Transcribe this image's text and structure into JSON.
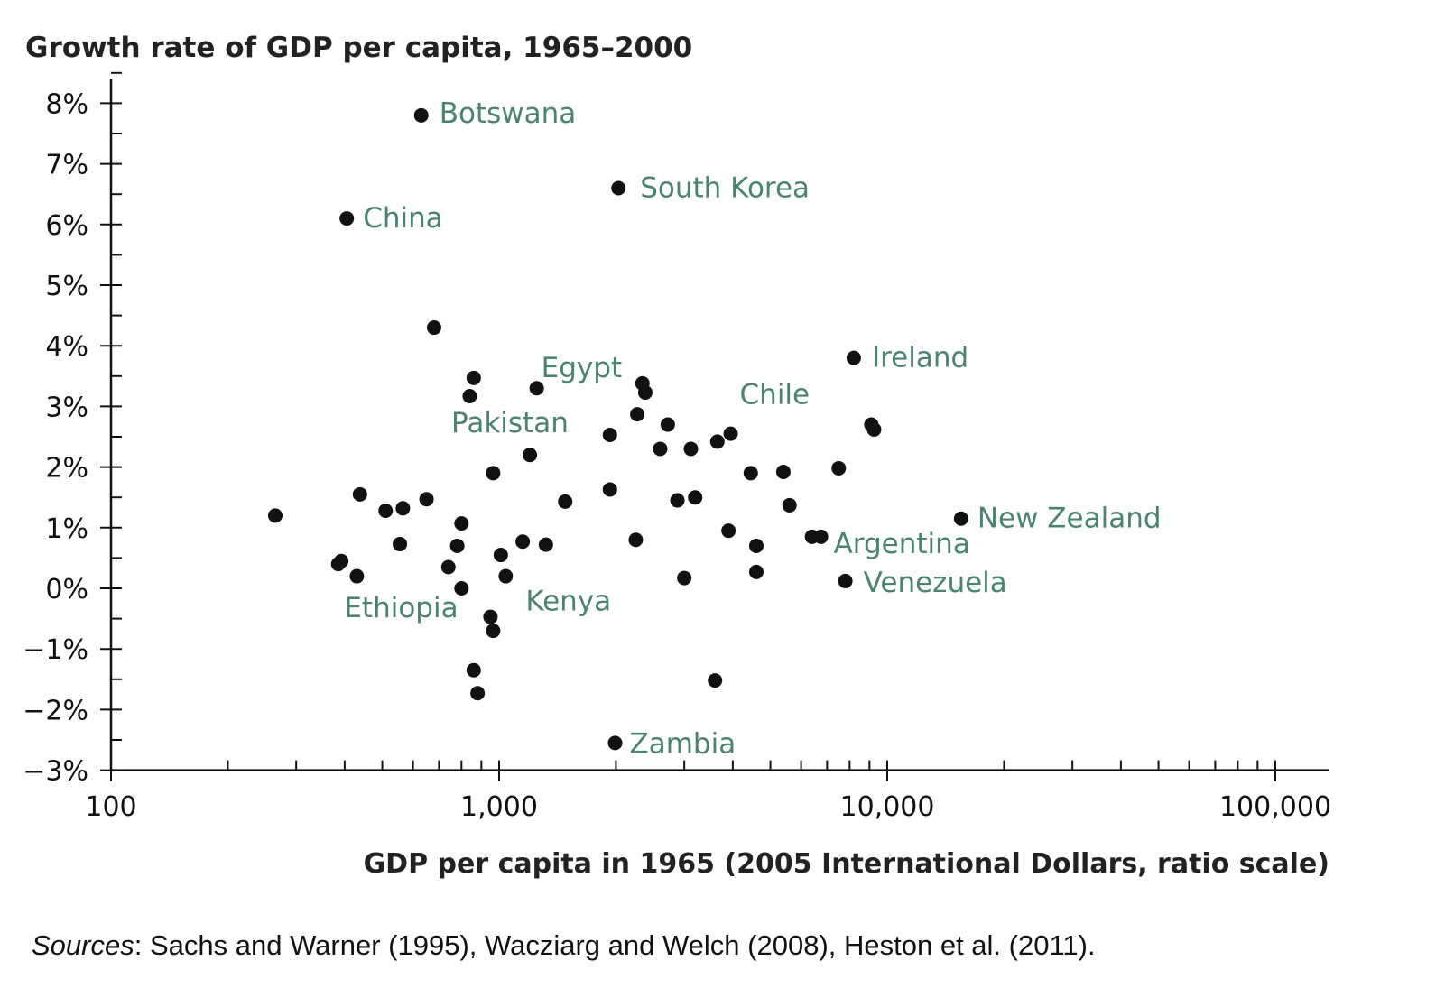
{
  "chart_data": {
    "type": "scatter",
    "title": "Growth rate of GDP per capita, 1965–2000",
    "xlabel": "GDP per capita in 1965 (2005 International Dollars, ratio scale)",
    "ylabel": "Growth rate of GDP per capita, 1965–2000",
    "x_scale": "log",
    "xlim": [
      100,
      150000
    ],
    "ylim": [
      -3,
      8.6
    ],
    "x_ticks": [
      {
        "value": 100,
        "label": "100"
      },
      {
        "value": 1000,
        "label": "1,000"
      },
      {
        "value": 10000,
        "label": "10,000"
      },
      {
        "value": 100000,
        "label": "100,000"
      }
    ],
    "y_ticks": [
      {
        "value": 8,
        "label": "8%"
      },
      {
        "value": 7,
        "label": "7%"
      },
      {
        "value": 6,
        "label": "6%"
      },
      {
        "value": 5,
        "label": "5%"
      },
      {
        "value": 4,
        "label": "4%"
      },
      {
        "value": 3,
        "label": "3%"
      },
      {
        "value": 2,
        "label": "2%"
      },
      {
        "value": 1,
        "label": "1%"
      },
      {
        "value": 0,
        "label": "0%"
      },
      {
        "value": -1,
        "label": "−1%"
      },
      {
        "value": -2,
        "label": "−2%"
      },
      {
        "value": -3,
        "label": "−3%"
      }
    ],
    "grid": false,
    "label_color": "#4a8470",
    "marker_color": "#111111",
    "labeled_points": [
      {
        "label": "Botswana",
        "x": 630,
        "y": 7.8
      },
      {
        "label": "South Korea",
        "x": 2030,
        "y": 6.6
      },
      {
        "label": "China",
        "x": 405,
        "y": 6.1
      },
      {
        "label": "Ireland",
        "x": 8200,
        "y": 3.8
      },
      {
        "label": "Egypt",
        "x": 1250,
        "y": 3.3
      },
      {
        "label": "Chile",
        "x": 3950,
        "y": 2.55
      },
      {
        "label": "Pakistan",
        "x": 1200,
        "y": 2.2
      },
      {
        "label": "New Zealand",
        "x": 15500,
        "y": 1.15
      },
      {
        "label": "Argentina",
        "x": 6750,
        "y": 0.85
      },
      {
        "label": "Venezuela",
        "x": 7800,
        "y": 0.12
      },
      {
        "label": "Kenya",
        "x": 1040,
        "y": 0.2
      },
      {
        "label": "Ethiopia",
        "x": 800,
        "y": 0.0
      },
      {
        "label": "Zambia",
        "x": 1990,
        "y": -2.55
      }
    ],
    "points": [
      {
        "x": 265,
        "y": 1.2
      },
      {
        "x": 385,
        "y": 0.4
      },
      {
        "x": 392,
        "y": 0.45
      },
      {
        "x": 430,
        "y": 0.2
      },
      {
        "x": 438,
        "y": 1.55
      },
      {
        "x": 510,
        "y": 1.28
      },
      {
        "x": 555,
        "y": 0.73
      },
      {
        "x": 565,
        "y": 1.32
      },
      {
        "x": 650,
        "y": 1.47
      },
      {
        "x": 680,
        "y": 4.3
      },
      {
        "x": 740,
        "y": 0.35
      },
      {
        "x": 780,
        "y": 0.7
      },
      {
        "x": 800,
        "y": 1.07
      },
      {
        "x": 840,
        "y": 3.17
      },
      {
        "x": 860,
        "y": 3.47
      },
      {
        "x": 860,
        "y": -1.35
      },
      {
        "x": 880,
        "y": -1.73
      },
      {
        "x": 950,
        "y": -0.47
      },
      {
        "x": 965,
        "y": 1.9
      },
      {
        "x": 965,
        "y": -0.7
      },
      {
        "x": 1010,
        "y": 0.55
      },
      {
        "x": 1150,
        "y": 0.77
      },
      {
        "x": 1320,
        "y": 0.72
      },
      {
        "x": 1480,
        "y": 1.43
      },
      {
        "x": 1930,
        "y": 2.53
      },
      {
        "x": 1930,
        "y": 1.63
      },
      {
        "x": 2250,
        "y": 0.8
      },
      {
        "x": 2270,
        "y": 2.87
      },
      {
        "x": 2340,
        "y": 3.38
      },
      {
        "x": 2380,
        "y": 3.23
      },
      {
        "x": 2600,
        "y": 2.3
      },
      {
        "x": 2720,
        "y": 2.7
      },
      {
        "x": 2880,
        "y": 1.45
      },
      {
        "x": 3000,
        "y": 0.17
      },
      {
        "x": 3120,
        "y": 2.3
      },
      {
        "x": 3200,
        "y": 1.5
      },
      {
        "x": 3600,
        "y": -1.52
      },
      {
        "x": 3650,
        "y": 2.42
      },
      {
        "x": 3900,
        "y": 0.95
      },
      {
        "x": 4450,
        "y": 1.9
      },
      {
        "x": 4600,
        "y": 0.7
      },
      {
        "x": 4600,
        "y": 0.27
      },
      {
        "x": 5400,
        "y": 1.92
      },
      {
        "x": 5600,
        "y": 1.37
      },
      {
        "x": 6400,
        "y": 0.85
      },
      {
        "x": 7500,
        "y": 1.98
      },
      {
        "x": 9100,
        "y": 2.7
      },
      {
        "x": 9250,
        "y": 2.62
      }
    ]
  },
  "footer": {
    "source_label": "Sources",
    "source_text": ": Sachs and Warner (1995), Wacziarg and Welch (2008), Heston et al. (2011)."
  }
}
